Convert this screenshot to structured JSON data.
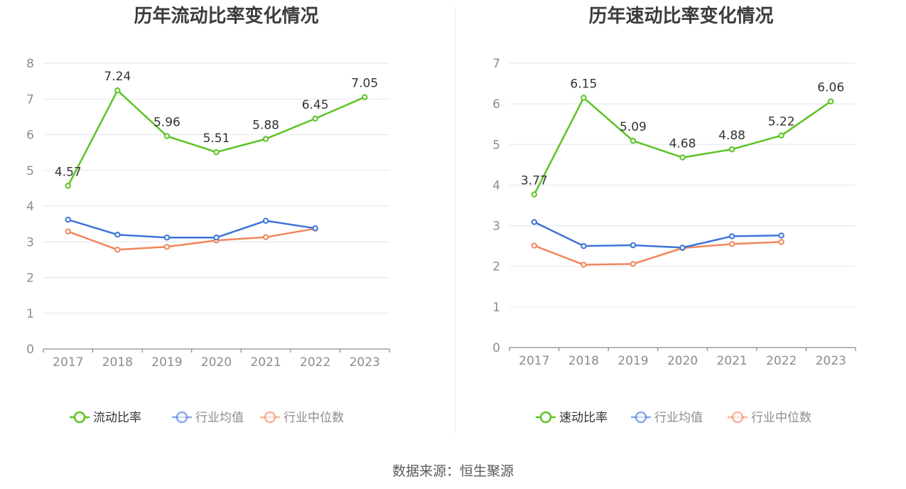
{
  "chart_data": [
    {
      "type": "line",
      "title": "历年流动比率变化情况",
      "categories": [
        "2017",
        "2018",
        "2019",
        "2020",
        "2021",
        "2022",
        "2023"
      ],
      "ylim": [
        0,
        8
      ],
      "yticks": [
        0,
        1,
        2,
        3,
        4,
        5,
        6,
        7,
        8
      ],
      "grid": true,
      "legend_position": "bottom",
      "series": [
        {
          "name": "流动比率",
          "color": "#5bc423",
          "values": [
            4.57,
            7.24,
            5.96,
            5.51,
            5.88,
            6.45,
            7.05
          ],
          "labeled": true,
          "legend_active": true
        },
        {
          "name": "行业均值",
          "color": "#3c74d8",
          "values": [
            3.62,
            3.2,
            3.12,
            3.12,
            3.59,
            3.38,
            null
          ],
          "labeled": false,
          "legend_active": false
        },
        {
          "name": "行业中位数",
          "color": "#f0865a",
          "values": [
            3.29,
            2.78,
            2.86,
            3.04,
            3.13,
            3.37,
            null
          ],
          "labeled": false,
          "legend_active": false
        }
      ]
    },
    {
      "type": "line",
      "title": "历年速动比率变化情况",
      "categories": [
        "2017",
        "2018",
        "2019",
        "2020",
        "2021",
        "2022",
        "2023"
      ],
      "ylim": [
        0,
        7
      ],
      "yticks": [
        0,
        1,
        2,
        3,
        4,
        5,
        6,
        7
      ],
      "grid": true,
      "legend_position": "bottom",
      "series": [
        {
          "name": "速动比率",
          "color": "#5bc423",
          "values": [
            3.77,
            6.15,
            5.09,
            4.68,
            4.88,
            5.22,
            6.06
          ],
          "labeled": true,
          "legend_active": true
        },
        {
          "name": "行业均值",
          "color": "#3c74d8",
          "values": [
            3.09,
            2.5,
            2.52,
            2.46,
            2.74,
            2.76,
            null
          ],
          "labeled": false,
          "legend_active": false
        },
        {
          "name": "行业中位数",
          "color": "#f0865a",
          "values": [
            2.51,
            2.04,
            2.06,
            2.45,
            2.55,
            2.6,
            null
          ],
          "labeled": false,
          "legend_active": false
        }
      ]
    }
  ],
  "footer": {
    "source": "数据来源：恒生聚源"
  }
}
